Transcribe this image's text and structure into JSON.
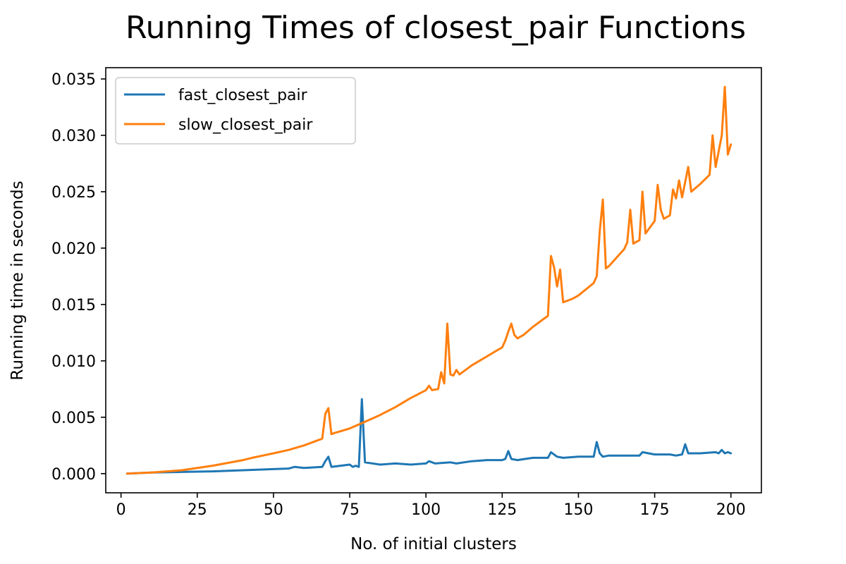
{
  "chart_data": {
    "type": "line",
    "title": "Running Times of closest_pair Functions",
    "xlabel": "No. of initial clusters",
    "ylabel": "Running time in seconds",
    "xlim": [
      -5,
      210
    ],
    "ylim": [
      -0.0017,
      0.036
    ],
    "xticks": [
      0,
      25,
      50,
      75,
      100,
      125,
      150,
      175,
      200
    ],
    "yticks": [
      0.0,
      0.005,
      0.01,
      0.015,
      0.02,
      0.025,
      0.03,
      0.035
    ],
    "ytick_labels": [
      "0.000",
      "0.005",
      "0.010",
      "0.015",
      "0.020",
      "0.025",
      "0.030",
      "0.035"
    ],
    "legend_position": "upper-left",
    "grid": false,
    "series": [
      {
        "name": "fast_closest_pair",
        "color": "#1f77b4",
        "points": [
          [
            2,
            0.0
          ],
          [
            10,
            0.0001
          ],
          [
            20,
            0.00015
          ],
          [
            30,
            0.0002
          ],
          [
            40,
            0.0003
          ],
          [
            50,
            0.0004
          ],
          [
            55,
            0.00045
          ],
          [
            57,
            0.0006
          ],
          [
            60,
            0.0005
          ],
          [
            66,
            0.0006
          ],
          [
            67,
            0.0011
          ],
          [
            68,
            0.0015
          ],
          [
            69,
            0.0006
          ],
          [
            72,
            0.0007
          ],
          [
            75,
            0.0008
          ],
          [
            76,
            0.0006
          ],
          [
            77,
            0.0007
          ],
          [
            78,
            0.0006
          ],
          [
            79,
            0.0066
          ],
          [
            80,
            0.001
          ],
          [
            85,
            0.0008
          ],
          [
            90,
            0.0009
          ],
          [
            95,
            0.0008
          ],
          [
            100,
            0.0009
          ],
          [
            101,
            0.0011
          ],
          [
            103,
            0.0009
          ],
          [
            108,
            0.001
          ],
          [
            110,
            0.0009
          ],
          [
            115,
            0.0011
          ],
          [
            120,
            0.0012
          ],
          [
            125,
            0.0012
          ],
          [
            126,
            0.0013
          ],
          [
            127,
            0.002
          ],
          [
            128,
            0.0013
          ],
          [
            130,
            0.0012
          ],
          [
            135,
            0.0014
          ],
          [
            140,
            0.0014
          ],
          [
            141,
            0.0019
          ],
          [
            143,
            0.0015
          ],
          [
            145,
            0.0014
          ],
          [
            150,
            0.0015
          ],
          [
            155,
            0.0015
          ],
          [
            156,
            0.0028
          ],
          [
            157,
            0.0018
          ],
          [
            158,
            0.0015
          ],
          [
            160,
            0.0016
          ],
          [
            165,
            0.0016
          ],
          [
            170,
            0.0016
          ],
          [
            171,
            0.0019
          ],
          [
            175,
            0.0017
          ],
          [
            180,
            0.0017
          ],
          [
            182,
            0.0016
          ],
          [
            184,
            0.0017
          ],
          [
            185,
            0.0026
          ],
          [
            186,
            0.0018
          ],
          [
            190,
            0.0018
          ],
          [
            195,
            0.0019
          ],
          [
            196,
            0.0018
          ],
          [
            197,
            0.0021
          ],
          [
            198,
            0.0018
          ],
          [
            199,
            0.0019
          ],
          [
            200,
            0.0018
          ]
        ]
      },
      {
        "name": "slow_closest_pair",
        "color": "#ff7f0e",
        "points": [
          [
            2,
            0.0
          ],
          [
            10,
            0.0001
          ],
          [
            20,
            0.0003
          ],
          [
            30,
            0.0007
          ],
          [
            40,
            0.0012
          ],
          [
            43,
            0.0014
          ],
          [
            50,
            0.0018
          ],
          [
            55,
            0.0021
          ],
          [
            60,
            0.0025
          ],
          [
            65,
            0.003
          ],
          [
            66,
            0.0031
          ],
          [
            67,
            0.0053
          ],
          [
            68,
            0.0058
          ],
          [
            69,
            0.0035
          ],
          [
            70,
            0.0036
          ],
          [
            75,
            0.004
          ],
          [
            80,
            0.0046
          ],
          [
            85,
            0.0052
          ],
          [
            90,
            0.0059
          ],
          [
            95,
            0.0067
          ],
          [
            100,
            0.0074
          ],
          [
            101,
            0.0078
          ],
          [
            102,
            0.0074
          ],
          [
            104,
            0.0075
          ],
          [
            105,
            0.009
          ],
          [
            106,
            0.008
          ],
          [
            107,
            0.0133
          ],
          [
            108,
            0.0088
          ],
          [
            109,
            0.0087
          ],
          [
            110,
            0.0092
          ],
          [
            111,
            0.0088
          ],
          [
            115,
            0.0096
          ],
          [
            120,
            0.0104
          ],
          [
            125,
            0.0112
          ],
          [
            126,
            0.0118
          ],
          [
            127,
            0.0126
          ],
          [
            128,
            0.0133
          ],
          [
            129,
            0.0123
          ],
          [
            130,
            0.012
          ],
          [
            132,
            0.0123
          ],
          [
            135,
            0.013
          ],
          [
            140,
            0.014
          ],
          [
            141,
            0.0193
          ],
          [
            142,
            0.0183
          ],
          [
            143,
            0.0166
          ],
          [
            144,
            0.0181
          ],
          [
            145,
            0.0152
          ],
          [
            148,
            0.0155
          ],
          [
            150,
            0.0158
          ],
          [
            155,
            0.0169
          ],
          [
            156,
            0.0175
          ],
          [
            157,
            0.0215
          ],
          [
            158,
            0.0243
          ],
          [
            159,
            0.0182
          ],
          [
            160,
            0.0184
          ],
          [
            165,
            0.0199
          ],
          [
            166,
            0.0205
          ],
          [
            167,
            0.0234
          ],
          [
            168,
            0.0204
          ],
          [
            170,
            0.0207
          ],
          [
            171,
            0.025
          ],
          [
            172,
            0.0213
          ],
          [
            175,
            0.0224
          ],
          [
            176,
            0.0256
          ],
          [
            177,
            0.0234
          ],
          [
            178,
            0.0226
          ],
          [
            180,
            0.0229
          ],
          [
            181,
            0.0252
          ],
          [
            182,
            0.0244
          ],
          [
            183,
            0.026
          ],
          [
            184,
            0.0245
          ],
          [
            186,
            0.0272
          ],
          [
            187,
            0.025
          ],
          [
            190,
            0.0257
          ],
          [
            193,
            0.0265
          ],
          [
            194,
            0.03
          ],
          [
            195,
            0.0272
          ],
          [
            197,
            0.03
          ],
          [
            198,
            0.0343
          ],
          [
            199,
            0.0283
          ],
          [
            200,
            0.0292
          ]
        ]
      }
    ]
  }
}
